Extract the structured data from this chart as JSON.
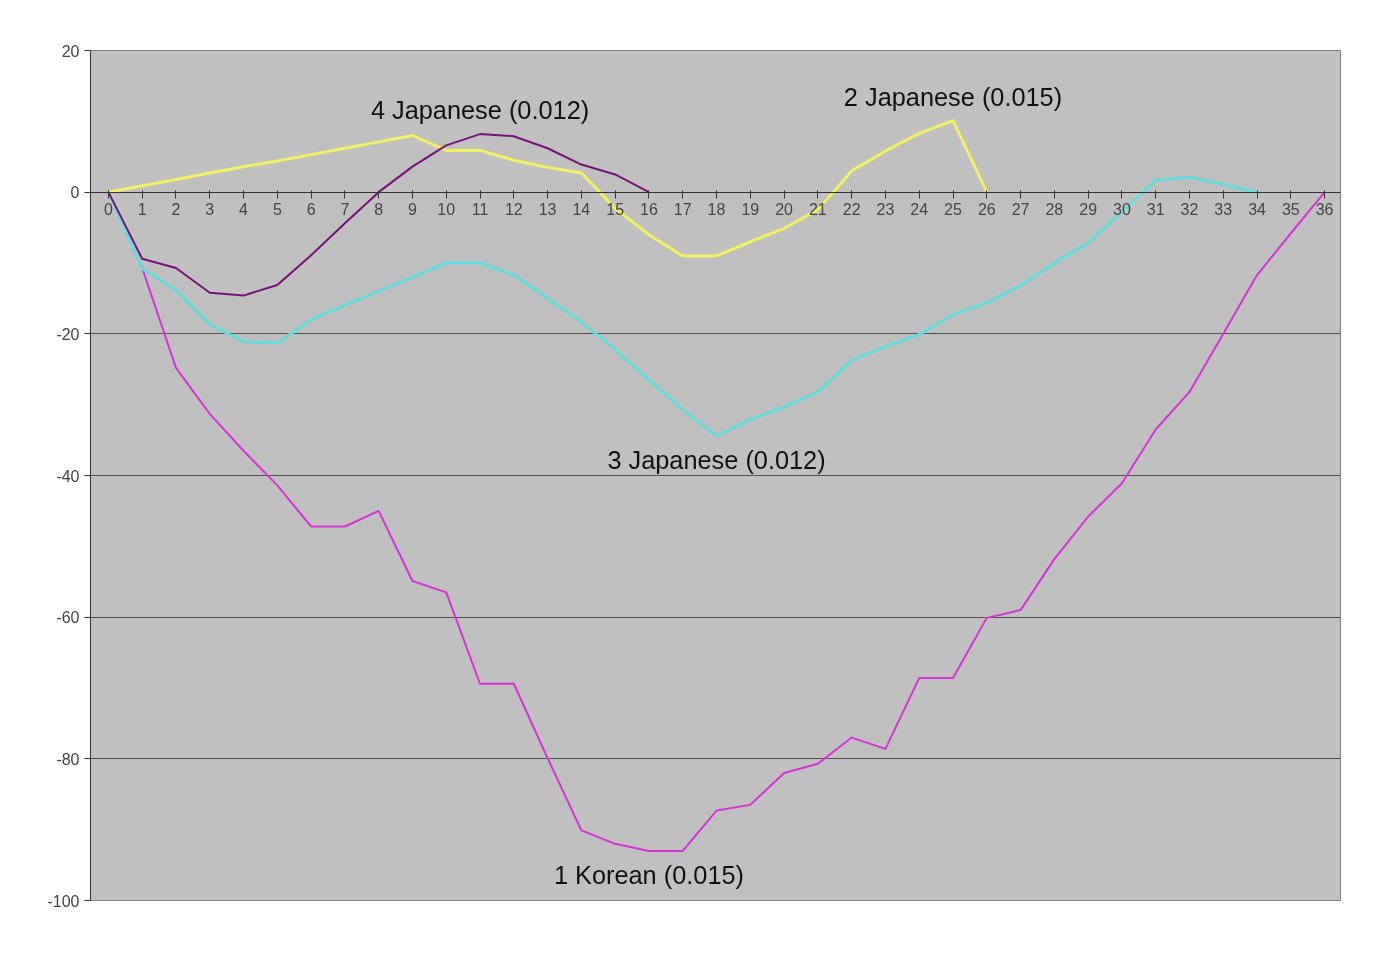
{
  "chart_data": {
    "type": "line",
    "x": [
      0,
      1,
      2,
      3,
      4,
      5,
      6,
      7,
      8,
      9,
      10,
      11,
      12,
      13,
      14,
      15,
      16,
      17,
      18,
      19,
      20,
      21,
      22,
      23,
      24,
      25,
      26,
      27,
      28,
      29,
      30,
      31,
      32,
      33,
      34,
      35,
      36
    ],
    "xlim": [
      -0.53,
      36.47
    ],
    "xticks": [
      0,
      1,
      2,
      3,
      4,
      5,
      6,
      7,
      8,
      9,
      10,
      11,
      12,
      13,
      14,
      15,
      16,
      17,
      18,
      19,
      20,
      21,
      22,
      23,
      24,
      25,
      26,
      27,
      28,
      29,
      30,
      31,
      32,
      33,
      34,
      35,
      36
    ],
    "ylim": [
      -100,
      20
    ],
    "yticks": [
      -100,
      -80,
      -60,
      -40,
      -20,
      0,
      20
    ],
    "grid": "y",
    "marker": "none",
    "series": [
      {
        "name": "1 Korean (0.015)",
        "color": "#d633d6",
        "values": [
          0,
          -10.7,
          -24.8,
          -31.3,
          -36.5,
          -41.4,
          -47.2,
          -47.2,
          -45,
          -54.9,
          -56.5,
          -69.4,
          -69.4,
          -79.9,
          -90.1,
          -92,
          -93,
          -93,
          -87.3,
          -86.5,
          -82,
          -80.7,
          -77,
          -78.6,
          -68.6,
          -68.6,
          -60.1,
          -59,
          -51.8,
          -45.8,
          -41.1,
          -33.5,
          -28.2,
          -20,
          -11.7,
          -5.8,
          0
        ]
      },
      {
        "name": "2 Japanese (0.015)",
        "color": "#f0f060",
        "values": [
          0,
          0.9,
          1.8,
          2.7,
          3.6,
          4.4,
          5.3,
          6.2,
          7.1,
          8.0,
          5.9,
          5.9,
          4.5,
          3.5,
          2.7,
          -2.3,
          -6,
          -9,
          -9,
          -7,
          -5.1,
          -2.5,
          3,
          5.8,
          8.3,
          10.1,
          0,
          null,
          null,
          null,
          null,
          null,
          null,
          null,
          null,
          null,
          null
        ]
      },
      {
        "name": "3 Japanese (0.012)",
        "color": "#66dddd",
        "values": [
          0,
          -10.8,
          -13.8,
          -18.7,
          -21.1,
          -21.3,
          -18,
          -15.9,
          -14,
          -12,
          -10,
          -10,
          -11.7,
          -15,
          -18.3,
          -22.3,
          -26.5,
          -30.7,
          -34.4,
          -32.1,
          -30.3,
          -28.2,
          -23.7,
          -21.8,
          -20.1,
          -17.3,
          -15.6,
          -13.2,
          -10,
          -7.2,
          -2.8,
          1.7,
          2.1,
          1.1,
          0,
          null,
          null
        ]
      },
      {
        "name": "4 Japanese (0.012)",
        "color": "#771177",
        "values": [
          0,
          -9.4,
          -10.7,
          -14.2,
          -14.6,
          -13.1,
          -8.9,
          -4.4,
          0,
          3.6,
          6.6,
          8.2,
          7.9,
          6.2,
          3.9,
          2.5,
          0,
          null,
          null,
          null,
          null,
          null,
          null,
          null,
          null,
          null,
          null,
          null,
          null,
          null,
          null,
          null,
          null,
          null,
          null,
          null,
          null
        ]
      }
    ]
  }
}
